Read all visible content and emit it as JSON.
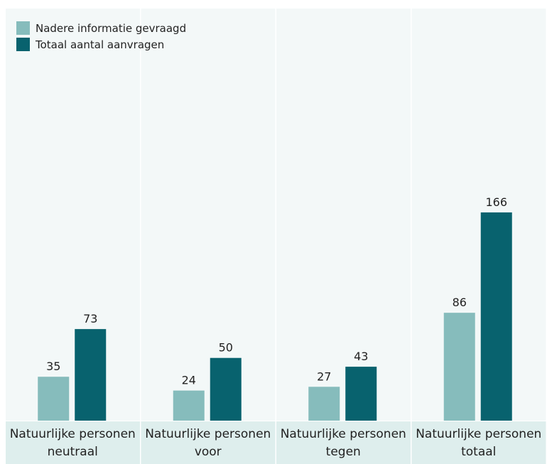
{
  "chart_data": {
    "type": "bar",
    "categories": [
      [
        "Natuurlijke personen",
        "neutraal"
      ],
      [
        "Natuurlijke personen",
        "voor"
      ],
      [
        "Natuurlijke personen",
        "tegen"
      ],
      [
        "Natuurlijke personen",
        "totaal"
      ]
    ],
    "series": [
      {
        "name": "Nadere informatie gevraagd",
        "color": "#86bcbc",
        "values": [
          35,
          24,
          27,
          86
        ]
      },
      {
        "name": "Totaal aantal aanvragen",
        "color": "#08626e",
        "values": [
          73,
          50,
          43,
          166
        ]
      }
    ],
    "ylim": [
      0,
      290
    ],
    "grid": false,
    "legend_position": "top-left",
    "colors": {
      "panel_background": "#f3f8f8",
      "panel_divider": "#ffffff",
      "label_band": "#deeeed",
      "text": "#222222"
    }
  }
}
